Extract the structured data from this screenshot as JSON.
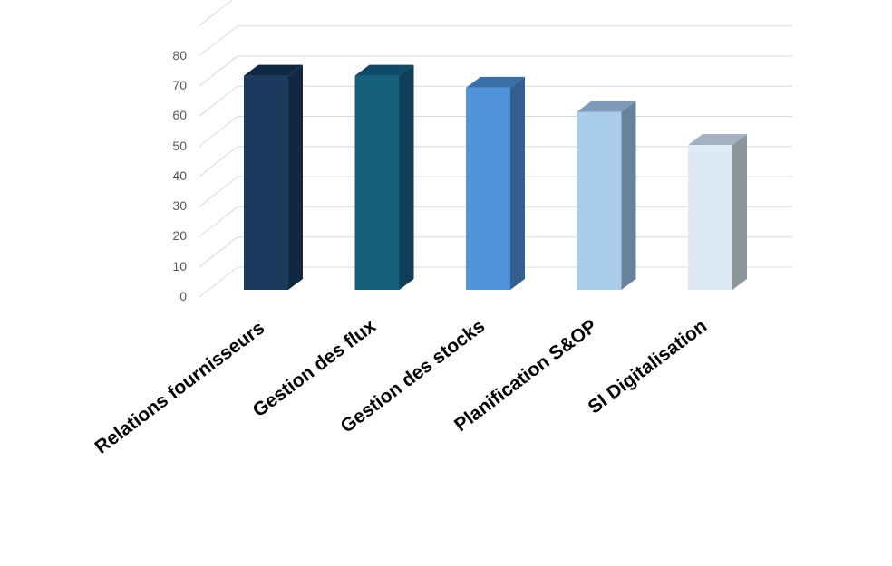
{
  "chart_data": {
    "type": "bar",
    "style": "3d-column",
    "title": "",
    "xlabel": "",
    "ylabel": "",
    "categories": [
      "Relations fournisseurs",
      "Gestion des flux",
      "Gestion des stocks",
      "Planification S&OP",
      "SI Digitalisation"
    ],
    "values": [
      71,
      71,
      67,
      59,
      48
    ],
    "ylim": [
      0,
      90
    ],
    "yticks": [
      0,
      10,
      20,
      30,
      40,
      50,
      60,
      70,
      80
    ],
    "grid": true,
    "legend": null,
    "colors": [
      {
        "front": "#1b3a5e",
        "side": "#112840",
        "top": "#0f2845"
      },
      {
        "front": "#155e7c",
        "side": "#0e3f55",
        "top": "#0f4a66"
      },
      {
        "front": "#4f94d9",
        "side": "#325f90",
        "top": "#3a6ea8"
      },
      {
        "front": "#a9cbec",
        "side": "#6a8299",
        "top": "#7e9ab8"
      },
      {
        "front": "#dde9f6",
        "side": "#8e959b",
        "top": "#a3b1c1"
      }
    ]
  }
}
